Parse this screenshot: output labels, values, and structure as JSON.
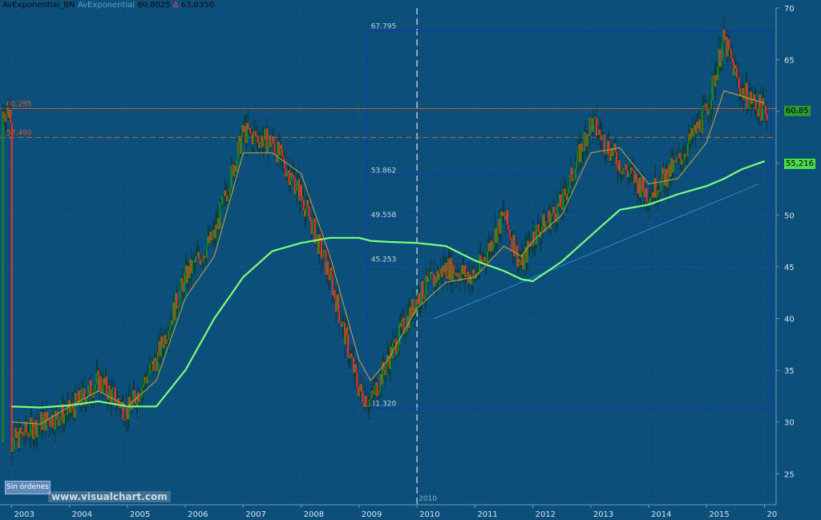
{
  "header": {
    "symbol": "AvExponential_BN",
    "indicator": "AvExponential",
    "value1": "60,8025",
    "arrow": "∆",
    "value2": "63,0350"
  },
  "badges": {
    "orders": "Sin órdenes",
    "watermark": "www.visualchart.com",
    "marker_year": "2010"
  },
  "price_tags": {
    "ema": "55,216",
    "last": "60,85"
  },
  "levels": [
    {
      "label": "60,295",
      "value": 60.295,
      "color": "#e05a20"
    },
    {
      "label": "57,490",
      "value": 57.49,
      "color": "#e05a20"
    }
  ],
  "fib": {
    "top": 67.795,
    "bottom": 31.32,
    "labels": [
      "67.795",
      "53.862",
      "49.558",
      "45.253",
      "31.320"
    ],
    "values": [
      67.795,
      53.862,
      49.558,
      45.253,
      31.32
    ]
  },
  "colors": {
    "background": "#0b4f7a",
    "ema_long": "#7cff7c",
    "ema_short": "#b8a040",
    "candle_up": "#1a8a1a",
    "candle_down": "#e83030",
    "fib": "#1a2fc0"
  },
  "chart_data": {
    "type": "line",
    "title": "",
    "xlabel": "",
    "ylabel": "",
    "ylim": [
      22,
      70
    ],
    "grid": true,
    "x_ticks": [
      "2003",
      "2004",
      "2005",
      "2006",
      "2007",
      "2008",
      "2009",
      "2010",
      "2011",
      "2012",
      "2013",
      "2014",
      "2015",
      "20"
    ],
    "y_ticks": [
      25,
      30,
      35,
      40,
      45,
      50,
      55,
      60,
      65,
      70
    ],
    "x": [
      2003.0,
      2003.5,
      2004.0,
      2004.5,
      2005.0,
      2005.5,
      2006.0,
      2006.5,
      2007.0,
      2007.5,
      2008.0,
      2008.5,
      2009.0,
      2009.2,
      2009.5,
      2010.0,
      2010.5,
      2011.0,
      2011.5,
      2011.8,
      2012.0,
      2012.5,
      2013.0,
      2013.5,
      2014.0,
      2014.5,
      2015.0,
      2015.3,
      2015.6,
      2016.0
    ],
    "series": [
      {
        "values": [
          28,
          30,
          31,
          34,
          31,
          36,
          44,
          48,
          58,
          57,
          52,
          44,
          33,
          32,
          36,
          42,
          45,
          44,
          50,
          45,
          48,
          51,
          59,
          55,
          52,
          55,
          60,
          67,
          62,
          60
        ]
      },
      {
        "values": [
          31.5,
          31.4,
          31.6,
          32.0,
          31.5,
          31.5,
          35.0,
          40.0,
          44.0,
          46.5,
          47.3,
          47.8,
          47.8,
          47.5,
          47.4,
          47.3,
          47.0,
          45.6,
          44.6,
          43.8,
          43.6,
          45.5,
          48.0,
          50.5,
          51.0,
          52.0,
          52.8,
          53.5,
          54.4,
          55.2
        ]
      },
      {
        "values": [
          30,
          29.8,
          31.5,
          33,
          31.5,
          34,
          42,
          46,
          56,
          56,
          54,
          46,
          36,
          34,
          36,
          41,
          43.5,
          44,
          47,
          46,
          47.5,
          50,
          56,
          56.5,
          53,
          53.5,
          57,
          62,
          61.5,
          60.8
        ]
      }
    ]
  }
}
